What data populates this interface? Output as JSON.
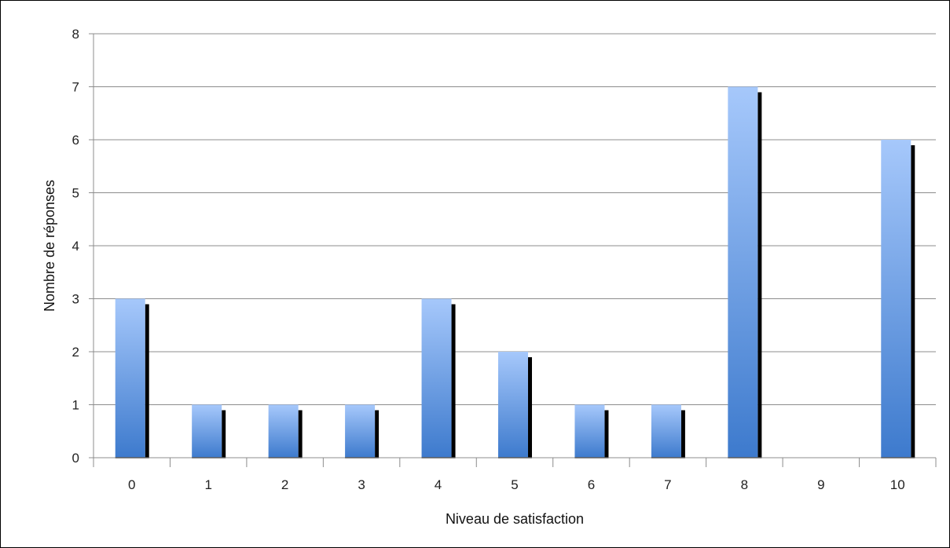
{
  "chart_data": {
    "type": "bar",
    "title": "",
    "xlabel": "Niveau de satisfaction",
    "ylabel": "Nombre de réponses",
    "categories": [
      "0",
      "1",
      "2",
      "3",
      "4",
      "5",
      "6",
      "7",
      "8",
      "9",
      "10"
    ],
    "values": [
      3,
      1,
      1,
      1,
      3,
      2,
      1,
      1,
      7,
      0,
      6
    ],
    "ylim": [
      0,
      8
    ],
    "yticks": [
      0,
      1,
      2,
      3,
      4,
      5,
      6,
      7,
      8
    ],
    "grid": "horizontal",
    "legend": "none",
    "colors": {
      "bar_top": "#a6c8fb",
      "bar_bottom": "#3d7acd",
      "bar_shadow": "#000000",
      "gridline": "#8c8c8c",
      "axis": "#8c8c8c"
    }
  }
}
